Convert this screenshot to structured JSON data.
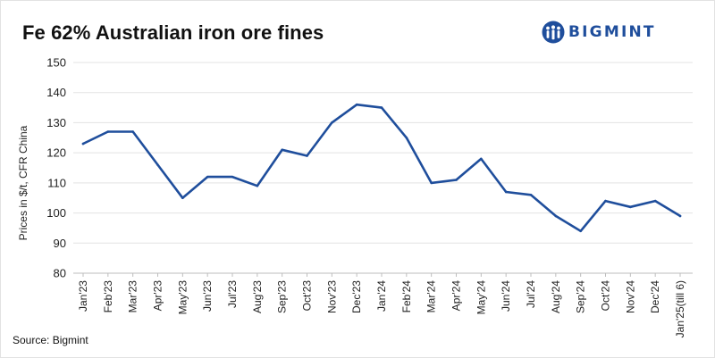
{
  "title": "Fe 62% Australian iron ore fines",
  "logo": {
    "name": "BIGMINT",
    "icon": "people-group-icon",
    "color": "#1f4e9c"
  },
  "source": "Source: Bigmint",
  "chart_data": {
    "type": "line",
    "title": "Fe 62% Australian iron ore fines",
    "xlabel": "",
    "ylabel": "Prices in $/t, CFR China",
    "ylim": [
      80,
      150
    ],
    "yticks": [
      80,
      90,
      100,
      110,
      120,
      130,
      140,
      150
    ],
    "grid": true,
    "legend": "none",
    "categories": [
      "Jan'23",
      "Feb'23",
      "Mar'23",
      "Apr'23",
      "May'23",
      "Jun'23",
      "Jul'23",
      "Aug'23",
      "Sep'23",
      "Oct'23",
      "Nov'23",
      "Dec'23",
      "Jan'24",
      "Feb'24",
      "Mar'24",
      "Apr'24",
      "May'24",
      "Jun'24",
      "Jul'24",
      "Aug'24",
      "Sep'24",
      "Oct'24",
      "Nov'24",
      "Dec'24",
      "Jan'25(till 6)"
    ],
    "series": [
      {
        "color": "#1f4e9c",
        "values": [
          123,
          127,
          127,
          116,
          105,
          112,
          112,
          109,
          121,
          119,
          130,
          136,
          135,
          125,
          110,
          111,
          118,
          107,
          106,
          99,
          94,
          104,
          102,
          104,
          99
        ]
      }
    ]
  }
}
